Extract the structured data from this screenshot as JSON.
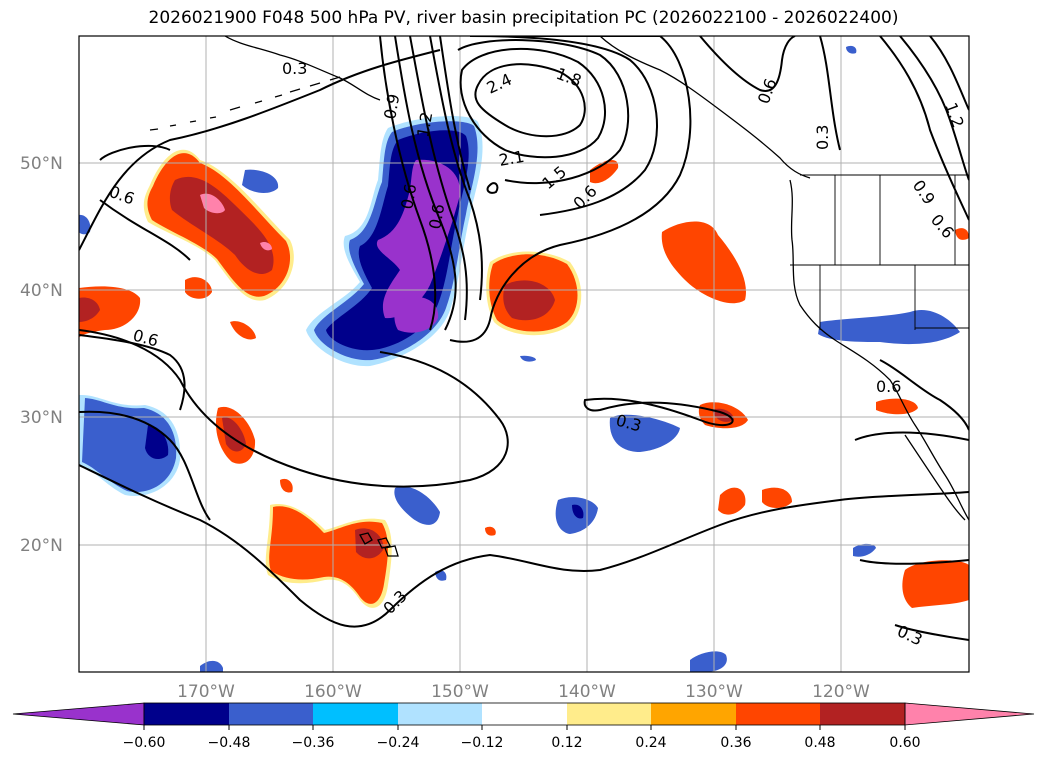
{
  "title": "2026021900 F048 500 hPa PV, river basin precipitation PC (2026022100 - 2026022400)",
  "lat_labels": [
    "50°N",
    "40°N",
    "30°N",
    "20°N"
  ],
  "lon_labels": [
    "170°W",
    "160°W",
    "150°W",
    "140°W",
    "130°W",
    "120°W"
  ],
  "colorbar": {
    "ticks": [
      "−0.60",
      "−0.48",
      "−0.36",
      "−0.24",
      "−0.12",
      "0.12",
      "0.24",
      "0.36",
      "0.48",
      "0.60"
    ],
    "colors": {
      "lt_-0.60": "#9932cc",
      "-0.60_-0.48": "#00008b",
      "-0.48_-0.36": "#3a5fcd",
      "-0.36_-0.24": "#00bfff",
      "-0.24_-0.12": "#b0e2ff",
      "-0.12_0.12": "#ffffff",
      "0.12_0.24": "#ffec8b",
      "0.24_0.36": "#ffa500",
      "0.36_0.48": "#ff4500",
      "0.48_0.60": "#b22222",
      "gt_0.60": "#ff82ab"
    }
  },
  "contour_labels": [
    "0.3",
    "0.6",
    "1.2",
    "2.4",
    "1.8",
    "2.1",
    "1.5",
    "0.6",
    "0.6",
    "0.3",
    "1.2",
    "0.9",
    "0.6",
    "0.6",
    "0.6",
    "0.3",
    "0.6",
    "0.3",
    "0.3",
    "0.9",
    "0.6"
  ]
}
